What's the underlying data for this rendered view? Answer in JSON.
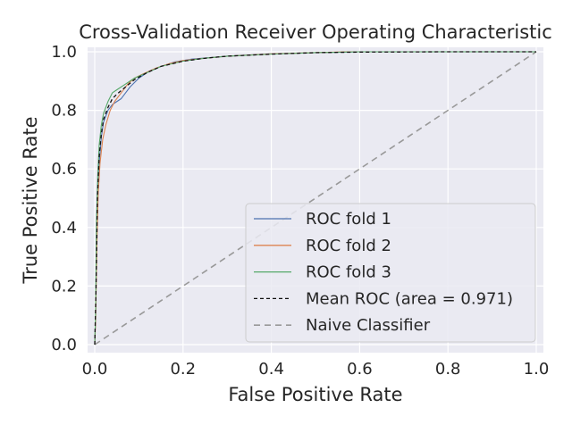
{
  "chart_data": {
    "type": "line",
    "title": "Cross-Validation Receiver Operating Characteristic",
    "xlabel": "False Positive Rate",
    "ylabel": "True Positive Rate",
    "xlim": [
      0.0,
      1.0
    ],
    "ylim": [
      0.0,
      1.0
    ],
    "xticks": [
      "0.0",
      "0.2",
      "0.4",
      "0.6",
      "0.8",
      "1.0"
    ],
    "yticks": [
      "0.0",
      "0.2",
      "0.4",
      "0.6",
      "0.8",
      "1.0"
    ],
    "grid": true,
    "legend_position": "lower-right",
    "series": [
      {
        "name": "ROC fold 1",
        "color": "#4c72b0",
        "dash": "solid",
        "points": [
          [
            0,
            0
          ],
          [
            0.002,
            0.1
          ],
          [
            0.004,
            0.38
          ],
          [
            0.006,
            0.52
          ],
          [
            0.01,
            0.62
          ],
          [
            0.015,
            0.71
          ],
          [
            0.02,
            0.76
          ],
          [
            0.03,
            0.8
          ],
          [
            0.04,
            0.82
          ],
          [
            0.05,
            0.83
          ],
          [
            0.06,
            0.84
          ],
          [
            0.07,
            0.86
          ],
          [
            0.08,
            0.88
          ],
          [
            0.1,
            0.91
          ],
          [
            0.12,
            0.93
          ],
          [
            0.15,
            0.95
          ],
          [
            0.18,
            0.965
          ],
          [
            0.22,
            0.975
          ],
          [
            0.3,
            0.985
          ],
          [
            0.4,
            0.993
          ],
          [
            0.5,
            0.997
          ],
          [
            0.6,
            1.0
          ],
          [
            1.0,
            1.0
          ]
        ]
      },
      {
        "name": "ROC fold 2",
        "color": "#dd8452",
        "dash": "solid",
        "points": [
          [
            0,
            0
          ],
          [
            0.002,
            0.08
          ],
          [
            0.005,
            0.35
          ],
          [
            0.008,
            0.52
          ],
          [
            0.012,
            0.62
          ],
          [
            0.018,
            0.7
          ],
          [
            0.025,
            0.75
          ],
          [
            0.035,
            0.8
          ],
          [
            0.045,
            0.83
          ],
          [
            0.06,
            0.86
          ],
          [
            0.075,
            0.89
          ],
          [
            0.09,
            0.91
          ],
          [
            0.11,
            0.925
          ],
          [
            0.14,
            0.945
          ],
          [
            0.17,
            0.96
          ],
          [
            0.2,
            0.97
          ],
          [
            0.25,
            0.978
          ],
          [
            0.3,
            0.985
          ],
          [
            0.4,
            0.993
          ],
          [
            0.5,
            0.997
          ],
          [
            0.57,
            1.0
          ],
          [
            1.0,
            1.0
          ]
        ]
      },
      {
        "name": "ROC fold 3",
        "color": "#55a868",
        "dash": "solid",
        "points": [
          [
            0,
            0
          ],
          [
            0.002,
            0.12
          ],
          [
            0.004,
            0.42
          ],
          [
            0.007,
            0.58
          ],
          [
            0.01,
            0.68
          ],
          [
            0.015,
            0.75
          ],
          [
            0.02,
            0.79
          ],
          [
            0.03,
            0.83
          ],
          [
            0.04,
            0.86
          ],
          [
            0.05,
            0.87
          ],
          [
            0.07,
            0.89
          ],
          [
            0.09,
            0.91
          ],
          [
            0.12,
            0.93
          ],
          [
            0.15,
            0.95
          ],
          [
            0.2,
            0.968
          ],
          [
            0.25,
            0.978
          ],
          [
            0.3,
            0.985
          ],
          [
            0.4,
            0.992
          ],
          [
            0.5,
            0.997
          ],
          [
            0.6,
            1.0
          ],
          [
            1.0,
            1.0
          ]
        ]
      },
      {
        "name": "Mean ROC (area = 0.971)",
        "color": "#111111",
        "dash": "4,3",
        "points": [
          [
            0,
            0
          ],
          [
            0.003,
            0.2
          ],
          [
            0.006,
            0.5
          ],
          [
            0.01,
            0.64
          ],
          [
            0.015,
            0.72
          ],
          [
            0.02,
            0.77
          ],
          [
            0.03,
            0.81
          ],
          [
            0.04,
            0.84
          ],
          [
            0.05,
            0.855
          ],
          [
            0.07,
            0.88
          ],
          [
            0.09,
            0.905
          ],
          [
            0.12,
            0.93
          ],
          [
            0.15,
            0.95
          ],
          [
            0.2,
            0.968
          ],
          [
            0.25,
            0.978
          ],
          [
            0.3,
            0.985
          ],
          [
            0.4,
            0.992
          ],
          [
            0.5,
            0.997
          ],
          [
            0.6,
            0.999
          ],
          [
            0.8,
            1.0
          ],
          [
            1.0,
            1.0
          ]
        ]
      },
      {
        "name": "Naive Classifier",
        "color": "#999999",
        "dash": "7,5",
        "points": [
          [
            0,
            0
          ],
          [
            1,
            1
          ]
        ]
      }
    ]
  }
}
